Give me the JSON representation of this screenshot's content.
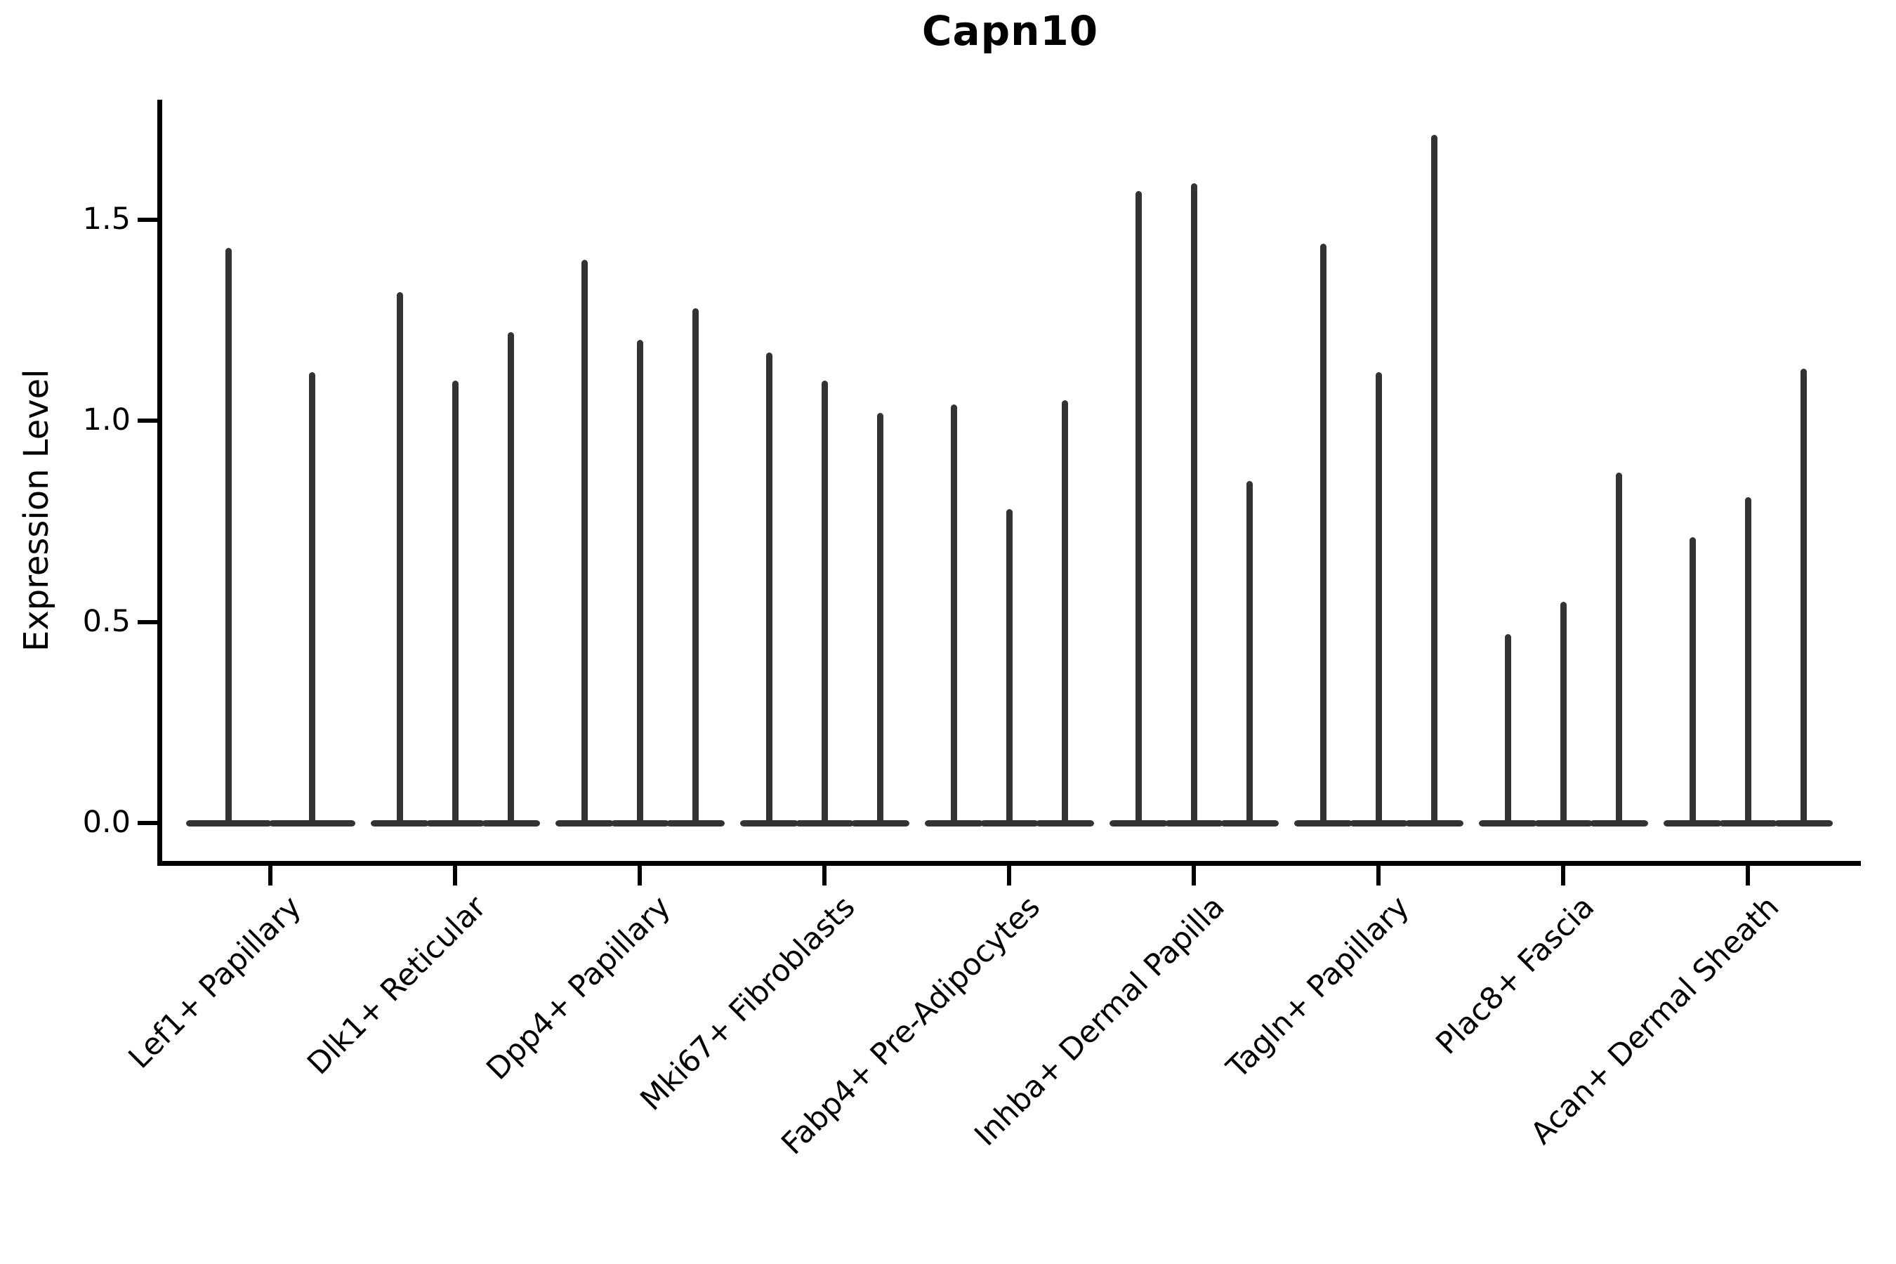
{
  "chart_data": {
    "type": "violin",
    "title": "Capn10",
    "ylabel": "Expression Level",
    "xlabel": "",
    "ylim": [
      -0.1,
      1.79
    ],
    "yticks": [
      "0.0",
      "0.5",
      "1.0",
      "1.5"
    ],
    "ytick_values": [
      0.0,
      0.5,
      1.0,
      1.5
    ],
    "grid": false,
    "legend": "none",
    "violin_color": "#333333",
    "axis_color": "#000000",
    "categories": [
      "Lef1+ Papillary",
      "Dlk1+ Reticular",
      "Dpp4+ Papillary",
      "Mki67+ Fibroblasts",
      "Fabp4+ Pre-Adipocytes",
      "Inhba+ Dermal Papilla",
      "Tagln+ Papillary",
      "Plac8+ Fascia",
      "Acan+ Dermal Sheath"
    ],
    "groups": [
      {
        "category": "Lef1+ Papillary",
        "violin_max_values": [
          1.43,
          1.12
        ]
      },
      {
        "category": "Dlk1+ Reticular",
        "violin_max_values": [
          1.32,
          1.1,
          1.22
        ]
      },
      {
        "category": "Dpp4+ Papillary",
        "violin_max_values": [
          1.4,
          1.2,
          1.28
        ]
      },
      {
        "category": "Mki67+ Fibroblasts",
        "violin_max_values": [
          1.17,
          1.1,
          1.02
        ]
      },
      {
        "category": "Fabp4+ Pre-Adipocytes",
        "violin_max_values": [
          1.04,
          0.78,
          1.05
        ]
      },
      {
        "category": "Inhba+ Dermal Papilla",
        "violin_max_values": [
          1.57,
          1.59,
          0.85
        ]
      },
      {
        "category": "Tagln+ Papillary",
        "violin_max_values": [
          1.44,
          1.12,
          1.71
        ]
      },
      {
        "category": "Plac8+ Fascia",
        "violin_max_values": [
          0.47,
          0.55,
          0.87
        ]
      },
      {
        "category": "Acan+ Dermal Sheath",
        "violin_max_values": [
          0.71,
          0.81,
          1.13
        ]
      }
    ]
  }
}
